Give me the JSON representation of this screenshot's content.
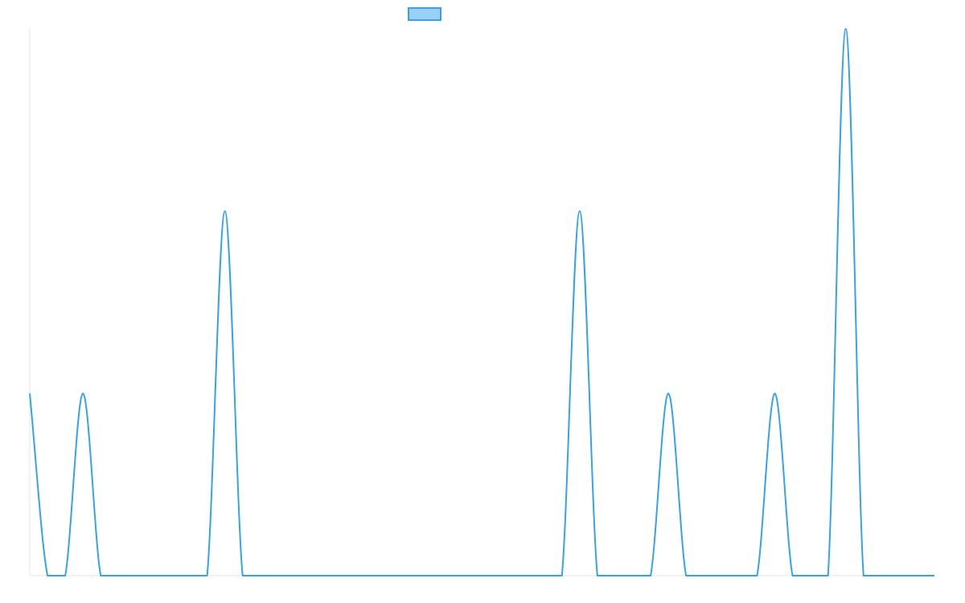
{
  "chart_data": {
    "type": "line",
    "title": "",
    "xlabel": "",
    "ylabel": "",
    "grid": false,
    "legend": {
      "placement": "top-center",
      "entries": [
        {
          "label": "",
          "color": "#36a2eb",
          "fill": "#9ad0f5"
        }
      ]
    },
    "ylim": [
      0,
      3
    ],
    "xlim": [
      0,
      51
    ],
    "series": [
      {
        "color": "#36a2eb",
        "x": [
          0,
          1,
          2,
          3,
          4,
          5,
          6,
          7,
          8,
          9,
          10,
          11,
          12,
          13,
          14,
          15,
          16,
          17,
          18,
          19,
          20,
          21,
          22,
          23,
          24,
          25,
          26,
          27,
          28,
          29,
          30,
          31,
          32,
          33,
          34,
          35,
          36,
          37,
          38,
          39,
          40,
          41,
          42,
          43,
          44,
          45,
          46,
          47,
          48,
          49,
          50,
          51
        ],
        "values": [
          1,
          0,
          0,
          1,
          0,
          0,
          0,
          0,
          0,
          0,
          0,
          2,
          0,
          0,
          0,
          0,
          0,
          0,
          0,
          0,
          0,
          0,
          0,
          0,
          0,
          0,
          0,
          0,
          0,
          0,
          0,
          2,
          0,
          0,
          0,
          0,
          1,
          0,
          0,
          0,
          0,
          0,
          1,
          0,
          0,
          0,
          3,
          0,
          0,
          0,
          0,
          0
        ]
      }
    ]
  }
}
